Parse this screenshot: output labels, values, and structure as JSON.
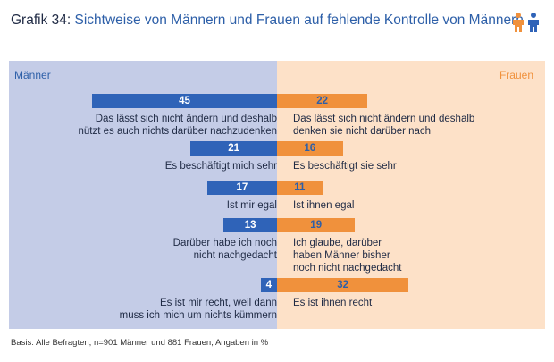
{
  "header": {
    "prefix": "Grafik 34:",
    "title": "Sichtweise von Männern und Frauen auf fehlende Kontrolle von Männern",
    "icon": "men-women-icon"
  },
  "legend": {
    "men": "Männer",
    "women": "Frauen"
  },
  "colors": {
    "men": "#2f63b8",
    "women": "#f0913c",
    "men_bg": "#c4cce7",
    "women_bg": "#fde1c8"
  },
  "chart_data": {
    "type": "bar",
    "orientation": "horizontal-diverging",
    "series": [
      {
        "name": "Männer",
        "values": [
          45,
          21,
          17,
          13,
          4
        ]
      },
      {
        "name": "Frauen",
        "values": [
          22,
          16,
          11,
          19,
          32
        ]
      }
    ],
    "rows": [
      {
        "men_label": "Das lässt sich nicht ändern und deshalb\nnützt es auch nichts darüber nachzudenken",
        "women_label": "Das lässt sich nicht ändern und deshalb\ndenken sie nicht darüber nach"
      },
      {
        "men_label": "Es beschäftigt mich sehr",
        "women_label": "Es beschäftigt sie sehr"
      },
      {
        "men_label": "Ist mir egal",
        "women_label": "Ist ihnen egal"
      },
      {
        "men_label": "Darüber habe ich noch\nnicht nachgedacht",
        "women_label": "Ich glaube, darüber\nhaben Männer bisher\nnoch nicht nachgedacht"
      },
      {
        "men_label": "Es ist mir recht, weil dann\nmuss ich mich um nichts kümmern",
        "women_label": "Es ist ihnen recht"
      }
    ]
  },
  "footer": {
    "basis": "Basis: Alle Befragten, n=901 Männer und 881 Frauen, Angaben in %"
  }
}
